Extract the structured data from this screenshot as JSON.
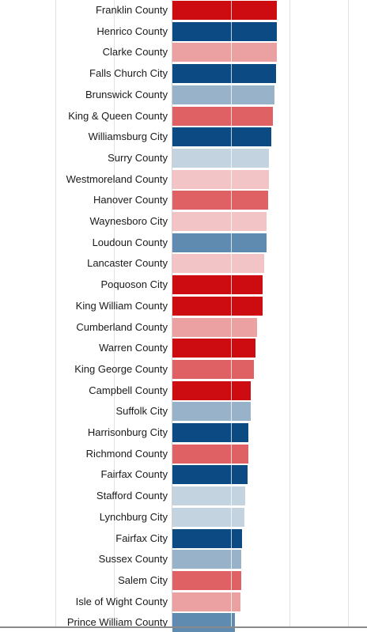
{
  "chart_data": {
    "type": "bar",
    "orientation": "horizontal",
    "categories": [
      "Franklin County",
      "Henrico County",
      "Clarke County",
      "Falls Church City",
      "Brunswick County",
      "King & Queen County",
      "Williamsburg City",
      "Surry County",
      "Westmoreland County",
      "Hanover County",
      "Waynesboro City",
      "Loudoun County",
      "Lancaster County",
      "Poquoson City",
      "King William County",
      "Cumberland County",
      "Warren County",
      "King George County",
      "Campbell County",
      "Suffolk City",
      "Harrisonburg City",
      "Richmond County",
      "Fairfax County",
      "Stafford County",
      "Lynchburg City",
      "Fairfax City",
      "Sussex County",
      "Salem City",
      "Isle of Wight County",
      "Prince William County"
    ],
    "values": [
      1.79,
      1.79,
      1.78,
      1.77,
      1.74,
      1.71,
      1.69,
      1.65,
      1.65,
      1.63,
      1.61,
      1.61,
      1.57,
      1.54,
      1.54,
      1.45,
      1.42,
      1.39,
      1.34,
      1.34,
      1.3,
      1.3,
      1.29,
      1.24,
      1.23,
      1.19,
      1.17,
      1.17,
      1.16,
      1.07
    ],
    "colors": [
      "#cc0c10",
      "#0b4a82",
      "#eba0a2",
      "#0b4a82",
      "#98b2c9",
      "#e06164",
      "#0b4a82",
      "#c3d3e0",
      "#f3c4c6",
      "#e06164",
      "#f3c4c6",
      "#5f8bb0",
      "#f3c4c6",
      "#cc0c10",
      "#cc0c10",
      "#eba0a2",
      "#cc0c10",
      "#e06164",
      "#cc0c10",
      "#98b2c9",
      "#0b4a82",
      "#e06164",
      "#0b4a82",
      "#c3d3e0",
      "#c3d3e0",
      "#0b4a82",
      "#98b2c9",
      "#e06164",
      "#eba0a2",
      "#5f8bb0"
    ],
    "xlim": [
      0,
      3
    ],
    "grid": true,
    "title": "",
    "xlabel": "",
    "ylabel": ""
  }
}
